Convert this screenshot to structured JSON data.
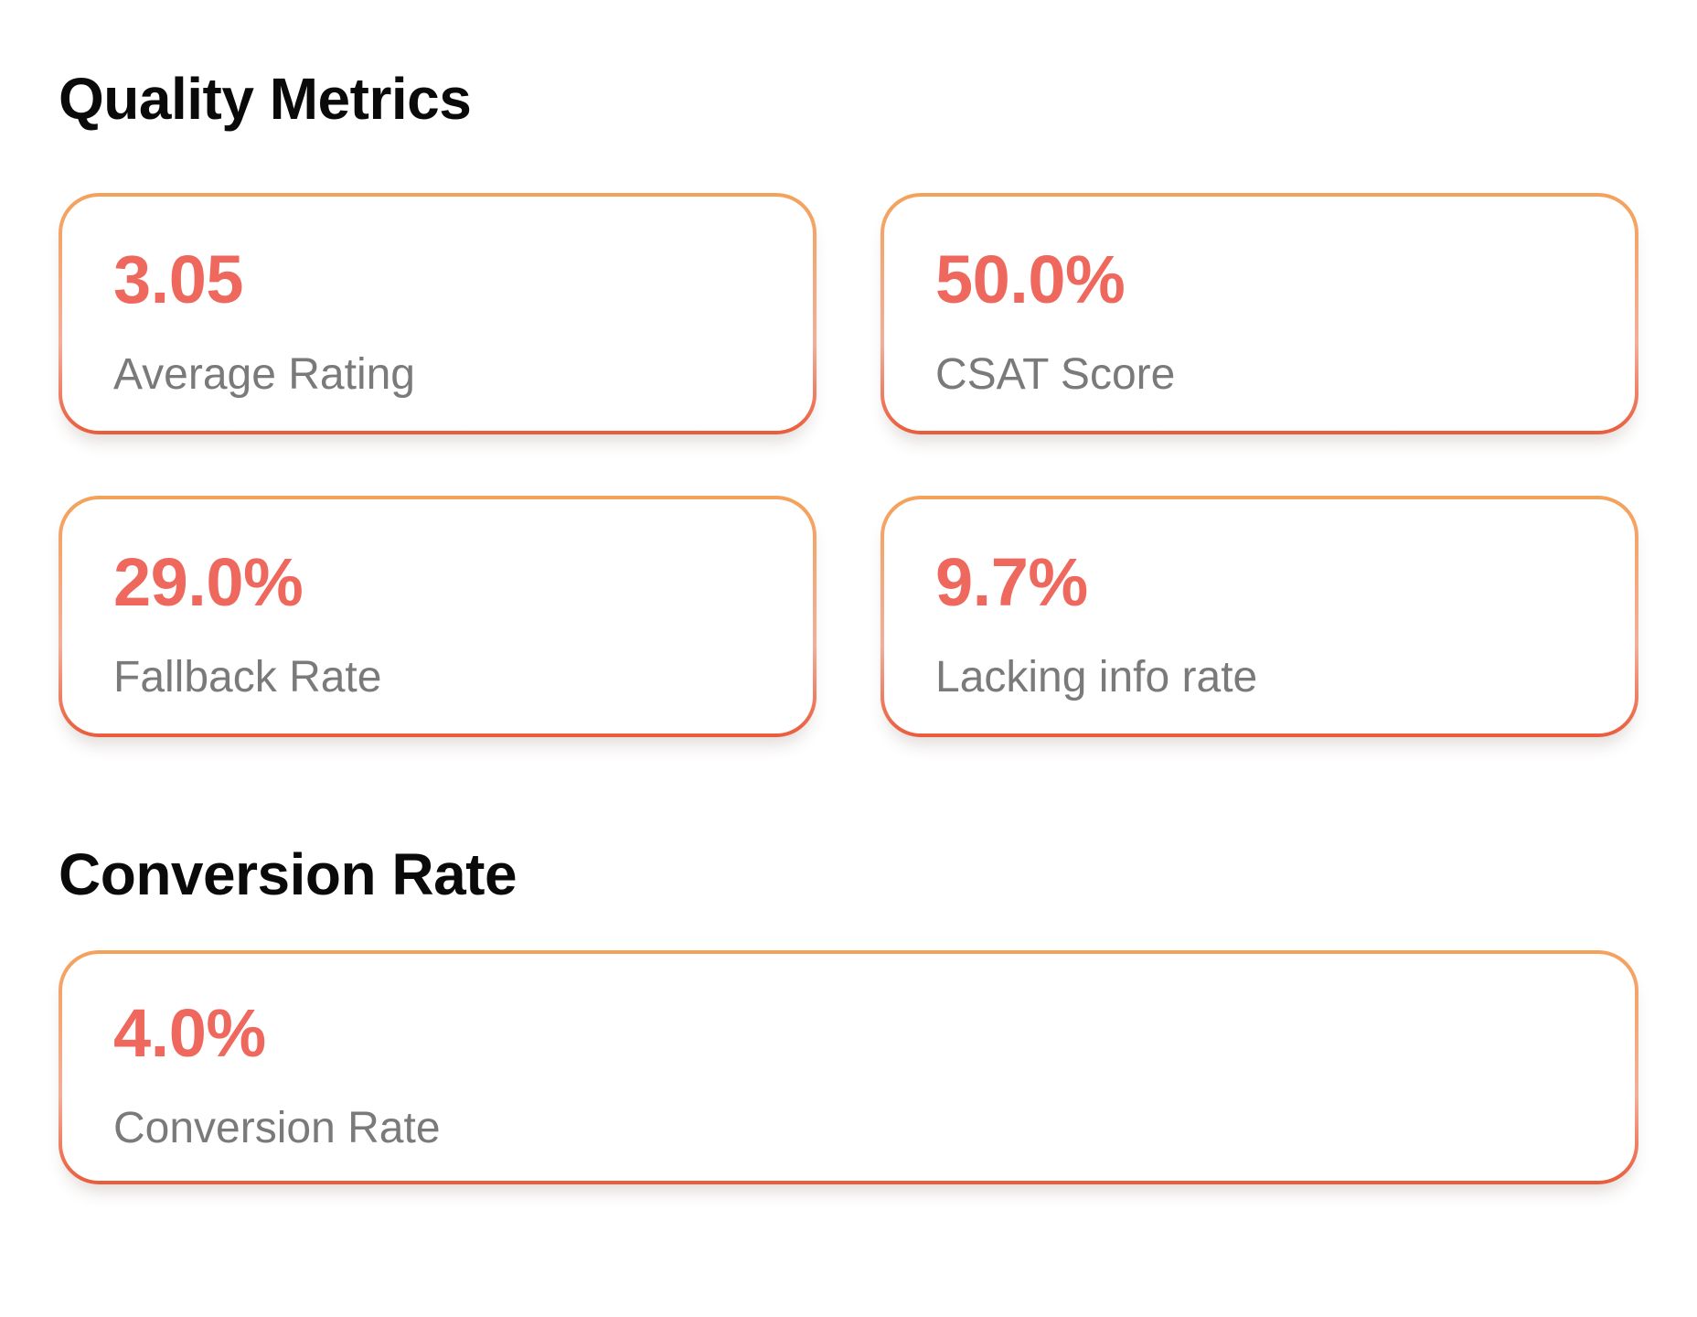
{
  "colors": {
    "value_text": "#ee685d",
    "label_text": "#7a7a7a",
    "heading_text": "#0a0a0a",
    "border_gradient_top": "#f4a159",
    "border_gradient_middle": "#f3ae98",
    "border_gradient_bottom": "#e95c3b",
    "background": "#ffffff"
  },
  "sections": [
    {
      "title": "Quality Metrics",
      "cards": [
        {
          "value": "3.05",
          "label": "Average Rating"
        },
        {
          "value": "50.0%",
          "label": "CSAT Score"
        },
        {
          "value": "29.0%",
          "label": "Fallback Rate"
        },
        {
          "value": "9.7%",
          "label": "Lacking info rate"
        }
      ]
    },
    {
      "title": "Conversion Rate",
      "cards": [
        {
          "value": "4.0%",
          "label": "Conversion Rate"
        }
      ]
    }
  ]
}
